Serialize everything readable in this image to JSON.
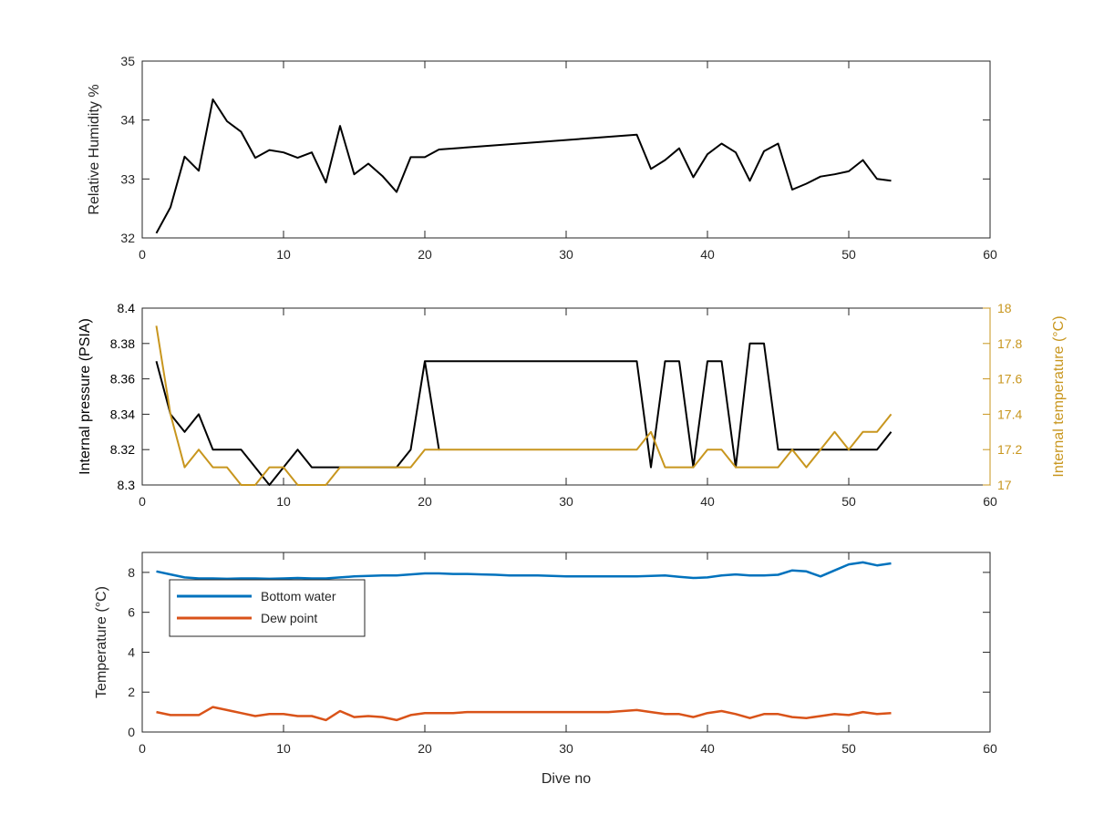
{
  "chart_data": [
    {
      "type": "line",
      "title": "",
      "xlabel": "",
      "ylabel": "Relative Humidity %",
      "xlim": [
        0,
        60
      ],
      "ylim": [
        32,
        35
      ],
      "xticks": [
        0,
        10,
        20,
        30,
        40,
        50,
        60
      ],
      "yticks": [
        32,
        33,
        34,
        35
      ],
      "series": [
        {
          "color": "#000000",
          "x": [
            1,
            2,
            3,
            4,
            5,
            6,
            7,
            8,
            9,
            10,
            11,
            12,
            13,
            14,
            15,
            16,
            17,
            18,
            19,
            20,
            21,
            35,
            36,
            37,
            38,
            39,
            40,
            41,
            42,
            43,
            44,
            45,
            46,
            47,
            48,
            49,
            50,
            51,
            52,
            53
          ],
          "y": [
            32.08,
            32.52,
            33.38,
            33.14,
            34.35,
            33.98,
            33.8,
            33.36,
            33.49,
            33.45,
            33.36,
            33.45,
            32.94,
            33.9,
            33.08,
            33.26,
            33.05,
            32.78,
            33.37,
            33.37,
            33.5,
            33.75,
            33.17,
            33.32,
            33.52,
            33.03,
            33.42,
            33.6,
            33.45,
            32.97,
            33.47,
            33.6,
            32.82,
            32.92,
            33.04,
            33.08,
            33.13,
            33.32,
            33.0,
            32.97
          ]
        }
      ]
    },
    {
      "type": "line",
      "title": "",
      "xlabel": "",
      "ylabel": "Internal pressure (PSIA)",
      "ylabel_right": "Internal temperature (°C)",
      "xlim": [
        0,
        60
      ],
      "ylim": [
        8.3,
        8.4
      ],
      "ylim_right": [
        17,
        18
      ],
      "xticks": [
        0,
        10,
        20,
        30,
        40,
        50,
        60
      ],
      "yticks": [
        8.3,
        8.32,
        8.34,
        8.36,
        8.38,
        8.4
      ],
      "yticks_right": [
        17,
        17.2,
        17.4,
        17.6,
        17.8,
        18
      ],
      "series": [
        {
          "axis": "left",
          "color": "#000000",
          "x": [
            1,
            2,
            3,
            4,
            5,
            6,
            7,
            8,
            9,
            10,
            11,
            12,
            13,
            14,
            15,
            16,
            17,
            18,
            19,
            20,
            21,
            20,
            35,
            36,
            37,
            38,
            39,
            40,
            41,
            42,
            43,
            44,
            45,
            46,
            47,
            48,
            49,
            50,
            51,
            52,
            53
          ],
          "y": [
            8.37,
            8.34,
            8.33,
            8.34,
            8.32,
            8.32,
            8.32,
            8.31,
            8.3,
            8.31,
            8.32,
            8.31,
            8.31,
            8.31,
            8.31,
            8.31,
            8.31,
            8.31,
            8.32,
            8.37,
            8.32,
            8.37,
            8.37,
            8.31,
            8.37,
            8.37,
            8.31,
            8.37,
            8.37,
            8.31,
            8.38,
            8.38,
            8.32,
            8.32,
            8.32,
            8.32,
            8.32,
            8.32,
            8.32,
            8.32,
            8.33
          ]
        },
        {
          "axis": "right",
          "color": "#C8961E",
          "x": [
            1,
            2,
            3,
            4,
            5,
            6,
            7,
            8,
            9,
            10,
            11,
            12,
            13,
            14,
            15,
            16,
            17,
            18,
            19,
            20,
            21,
            35,
            36,
            37,
            38,
            39,
            40,
            41,
            42,
            43,
            44,
            45,
            46,
            47,
            48,
            49,
            50,
            51,
            52,
            53
          ],
          "y": [
            17.9,
            17.4,
            17.1,
            17.2,
            17.1,
            17.1,
            17.0,
            17.0,
            17.1,
            17.1,
            17.0,
            17.0,
            17.0,
            17.1,
            17.1,
            17.1,
            17.1,
            17.1,
            17.1,
            17.2,
            17.2,
            17.2,
            17.3,
            17.1,
            17.1,
            17.1,
            17.2,
            17.2,
            17.1,
            17.1,
            17.1,
            17.1,
            17.2,
            17.1,
            17.2,
            17.3,
            17.2,
            17.3,
            17.3,
            17.4
          ]
        }
      ]
    },
    {
      "type": "line",
      "title": "",
      "xlabel": "Dive no",
      "ylabel": "Temperature (°C)",
      "xlim": [
        0,
        60
      ],
      "ylim": [
        0,
        9
      ],
      "xticks": [
        0,
        10,
        20,
        30,
        40,
        50,
        60
      ],
      "yticks": [
        0,
        2,
        4,
        6,
        8
      ],
      "legend": "top-left",
      "series": [
        {
          "name": "Bottom water",
          "color": "#0072BD",
          "x": [
            1,
            2,
            3,
            4,
            5,
            6,
            7,
            8,
            9,
            10,
            11,
            12,
            13,
            14,
            15,
            16,
            17,
            18,
            19,
            20,
            21,
            22,
            23,
            24,
            25,
            26,
            27,
            28,
            29,
            30,
            31,
            32,
            33,
            34,
            35,
            36,
            37,
            38,
            39,
            40,
            41,
            42,
            43,
            44,
            45,
            46,
            47,
            48,
            49,
            50,
            51,
            52,
            53
          ],
          "y": [
            8.05,
            7.9,
            7.75,
            7.7,
            7.7,
            7.68,
            7.7,
            7.7,
            7.68,
            7.7,
            7.72,
            7.7,
            7.7,
            7.75,
            7.8,
            7.82,
            7.85,
            7.85,
            7.9,
            7.95,
            7.95,
            7.92,
            7.92,
            7.9,
            7.88,
            7.85,
            7.85,
            7.85,
            7.82,
            7.8,
            7.8,
            7.8,
            7.8,
            7.8,
            7.8,
            7.82,
            7.85,
            7.78,
            7.72,
            7.75,
            7.85,
            7.9,
            7.85,
            7.85,
            7.88,
            8.1,
            8.05,
            7.8,
            8.1,
            8.4,
            8.5,
            8.35,
            8.45
          ]
        },
        {
          "name": "Dew point",
          "color": "#D95319",
          "x": [
            1,
            2,
            3,
            4,
            5,
            6,
            7,
            8,
            9,
            10,
            11,
            12,
            13,
            14,
            15,
            16,
            17,
            18,
            19,
            20,
            21,
            22,
            23,
            24,
            25,
            26,
            27,
            28,
            29,
            30,
            31,
            32,
            33,
            34,
            35,
            36,
            37,
            38,
            39,
            40,
            41,
            42,
            43,
            44,
            45,
            46,
            47,
            48,
            49,
            50,
            51,
            52,
            53
          ],
          "y": [
            1.0,
            0.85,
            0.85,
            0.85,
            1.25,
            1.1,
            0.95,
            0.8,
            0.9,
            0.9,
            0.8,
            0.8,
            0.6,
            1.05,
            0.75,
            0.8,
            0.75,
            0.6,
            0.85,
            0.95,
            0.95,
            0.95,
            1.0,
            1.0,
            1.0,
            1.0,
            1.0,
            1.0,
            1.0,
            1.0,
            1.0,
            1.0,
            1.0,
            1.05,
            1.1,
            1.0,
            0.9,
            0.9,
            0.75,
            0.95,
            1.05,
            0.9,
            0.7,
            0.9,
            0.9,
            0.75,
            0.7,
            0.8,
            0.9,
            0.85,
            1.0,
            0.9,
            0.95
          ]
        }
      ]
    }
  ]
}
